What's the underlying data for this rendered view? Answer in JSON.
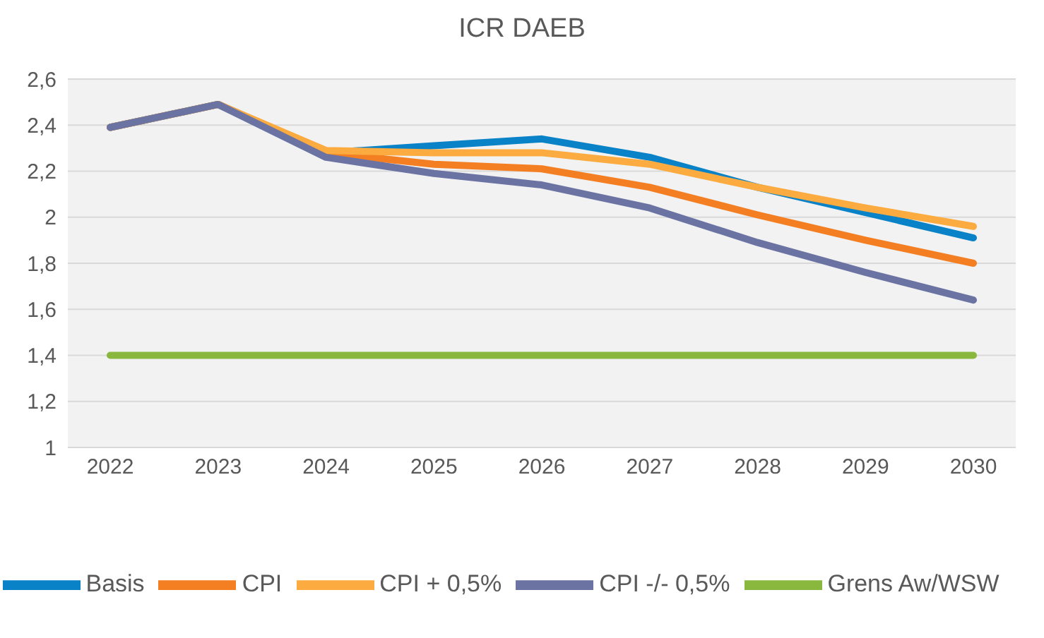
{
  "chart_data": {
    "type": "line",
    "title": "ICR DAEB",
    "categories": [
      "2022",
      "2023",
      "2024",
      "2025",
      "2026",
      "2027",
      "2028",
      "2029",
      "2030"
    ],
    "series": [
      {
        "name": "Grens Aw/WSW",
        "color": "#8ab83f",
        "values": [
          1.4,
          1.4,
          1.4,
          1.4,
          1.4,
          1.4,
          1.4,
          1.4,
          1.4
        ]
      },
      {
        "name": "Basis",
        "color": "#0a82c8",
        "values": [
          2.39,
          2.49,
          2.28,
          2.31,
          2.34,
          2.26,
          2.13,
          2.02,
          1.91
        ]
      },
      {
        "name": "CPI",
        "color": "#f47f22",
        "values": [
          2.39,
          2.49,
          2.28,
          2.23,
          2.21,
          2.13,
          2.01,
          1.9,
          1.8
        ]
      },
      {
        "name": "CPI + 0,5%",
        "color": "#fbab3f",
        "values": [
          2.39,
          2.49,
          2.29,
          2.28,
          2.28,
          2.23,
          2.13,
          2.04,
          1.96
        ]
      },
      {
        "name": "CPI -/- 0,5%",
        "color": "#6b73a3",
        "values": [
          2.39,
          2.49,
          2.26,
          2.19,
          2.14,
          2.04,
          1.89,
          1.76,
          1.64
        ]
      }
    ],
    "ylim": [
      1,
      2.6
    ],
    "yticks": [
      1,
      {
        "value": 1.2,
        "label": "1,2"
      },
      {
        "value": 1.4,
        "label": "1,4"
      },
      {
        "value": 1.6,
        "label": "1,6"
      },
      {
        "value": 1.8,
        "label": "1,8"
      },
      2,
      {
        "value": 2.2,
        "label": "2,2"
      },
      {
        "value": 2.4,
        "label": "2,4"
      },
      {
        "value": 2.6,
        "label": "2,6"
      }
    ],
    "grid": "y",
    "legend": "bottom",
    "marker": "none",
    "line_style": "solid"
  }
}
